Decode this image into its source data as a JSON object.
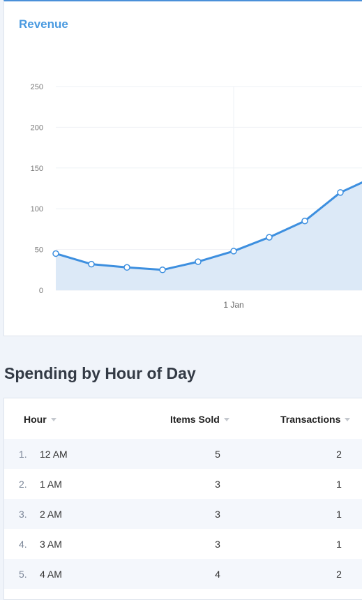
{
  "revenue_card": {
    "title": "Revenue"
  },
  "chart_data": {
    "type": "area",
    "title": "Revenue",
    "x_tick_label": "1 Jan",
    "y_ticks": [
      0,
      50,
      100,
      150,
      200,
      250
    ],
    "ylim": [
      0,
      250
    ],
    "values": [
      45,
      32,
      28,
      25,
      35,
      48,
      65,
      85,
      120,
      140
    ],
    "line_color": "#3d8fdf",
    "fill_color": "#dce9f7",
    "grid": true
  },
  "section": {
    "title": "Spending by Hour of Day"
  },
  "table": {
    "columns": [
      "Hour",
      "Items Sold",
      "Transactions"
    ],
    "rows": [
      {
        "rank": "1.",
        "hour": "12 AM",
        "items": "5",
        "transactions": "2"
      },
      {
        "rank": "2.",
        "hour": "1 AM",
        "items": "3",
        "transactions": "1"
      },
      {
        "rank": "3.",
        "hour": "2 AM",
        "items": "3",
        "transactions": "1"
      },
      {
        "rank": "4.",
        "hour": "3 AM",
        "items": "3",
        "transactions": "1"
      },
      {
        "rank": "5.",
        "hour": "4 AM",
        "items": "4",
        "transactions": "2"
      }
    ]
  }
}
